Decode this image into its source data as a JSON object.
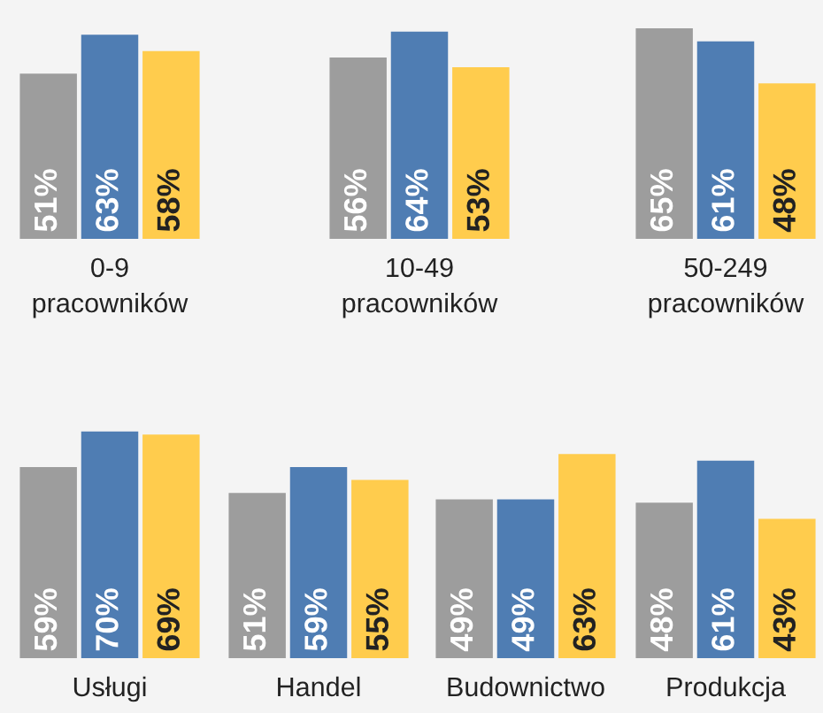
{
  "chart_data": [
    {
      "type": "bar",
      "categories": [
        null
      ],
      "xlabel": "0-9\npracowników",
      "series": [
        {
          "color": "#9d9d9d",
          "values": [
            51
          ],
          "value_labels": [
            "51%"
          ]
        },
        {
          "color": "#4f7db3",
          "values": [
            63
          ],
          "value_labels": [
            "63%"
          ]
        },
        {
          "color": "#ffcc4d",
          "values": [
            58
          ],
          "value_labels": [
            "58%"
          ]
        }
      ]
    },
    {
      "type": "bar",
      "categories": [
        null
      ],
      "xlabel": "10-49\npracowników",
      "series": [
        {
          "color": "#9d9d9d",
          "values": [
            56
          ],
          "value_labels": [
            "56%"
          ]
        },
        {
          "color": "#4f7db3",
          "values": [
            64
          ],
          "value_labels": [
            "64%"
          ]
        },
        {
          "color": "#ffcc4d",
          "values": [
            53
          ],
          "value_labels": [
            "53%"
          ]
        }
      ]
    },
    {
      "type": "bar",
      "categories": [
        null
      ],
      "xlabel": "50-249\npracowników",
      "series": [
        {
          "color": "#9d9d9d",
          "values": [
            65
          ],
          "value_labels": [
            "65%"
          ]
        },
        {
          "color": "#4f7db3",
          "values": [
            61
          ],
          "value_labels": [
            "61%"
          ]
        },
        {
          "color": "#ffcc4d",
          "values": [
            48
          ],
          "value_labels": [
            "48%"
          ]
        }
      ]
    },
    {
      "type": "bar",
      "categories": [
        null
      ],
      "xlabel": "Usługi",
      "series": [
        {
          "color": "#9d9d9d",
          "values": [
            59
          ],
          "value_labels": [
            "59%"
          ]
        },
        {
          "color": "#4f7db3",
          "values": [
            70
          ],
          "value_labels": [
            "70%"
          ]
        },
        {
          "color": "#ffcc4d",
          "values": [
            69
          ],
          "value_labels": [
            "69%"
          ]
        }
      ]
    },
    {
      "type": "bar",
      "categories": [
        null
      ],
      "xlabel": "Handel",
      "series": [
        {
          "color": "#9d9d9d",
          "values": [
            51
          ],
          "value_labels": [
            "51%"
          ]
        },
        {
          "color": "#4f7db3",
          "values": [
            59
          ],
          "value_labels": [
            "59%"
          ]
        },
        {
          "color": "#ffcc4d",
          "values": [
            55
          ],
          "value_labels": [
            "55%"
          ]
        }
      ]
    },
    {
      "type": "bar",
      "categories": [
        null
      ],
      "xlabel": "Budownictwo",
      "series": [
        {
          "color": "#9d9d9d",
          "values": [
            49
          ],
          "value_labels": [
            "49%"
          ]
        },
        {
          "color": "#4f7db3",
          "values": [
            49
          ],
          "value_labels": [
            "49%"
          ]
        },
        {
          "color": "#ffcc4d",
          "values": [
            63
          ],
          "value_labels": [
            "63%"
          ]
        }
      ]
    },
    {
      "type": "bar",
      "categories": [
        null
      ],
      "xlabel": "Produkcja",
      "series": [
        {
          "color": "#9d9d9d",
          "values": [
            48
          ],
          "value_labels": [
            "48%"
          ]
        },
        {
          "color": "#4f7db3",
          "values": [
            61
          ],
          "value_labels": [
            "61%"
          ]
        },
        {
          "color": "#ffcc4d",
          "values": [
            43
          ],
          "value_labels": [
            "43%"
          ]
        }
      ]
    }
  ]
}
